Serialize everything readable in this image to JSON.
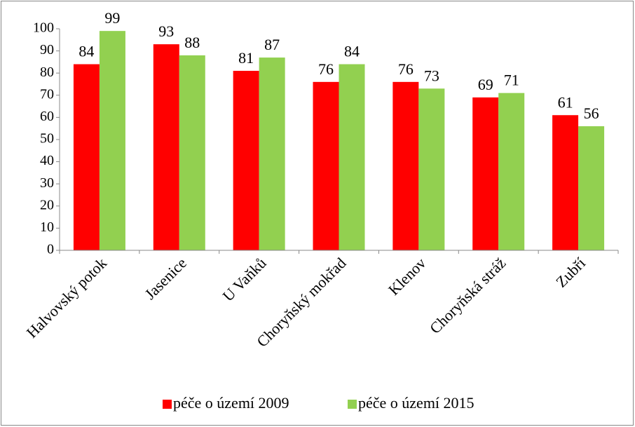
{
  "chart_data": {
    "type": "bar",
    "categories": [
      "Halvovský potok",
      "Jasenice",
      "U Vaňků",
      "Choryňský mokřad",
      "Klenov",
      "Choryňská stráž",
      "Zubří"
    ],
    "series": [
      {
        "name": "péče o území 2009",
        "color": "#ff0000",
        "values": [
          84,
          93,
          81,
          76,
          76,
          69,
          61
        ]
      },
      {
        "name": "péče o území 2015",
        "color": "#92d050",
        "values": [
          99,
          88,
          87,
          84,
          73,
          71,
          56
        ]
      }
    ],
    "ylim": [
      0,
      100
    ],
    "yticks": [
      0,
      10,
      20,
      30,
      40,
      50,
      60,
      70,
      80,
      90,
      100
    ],
    "grid": false,
    "legend": "bottom"
  }
}
